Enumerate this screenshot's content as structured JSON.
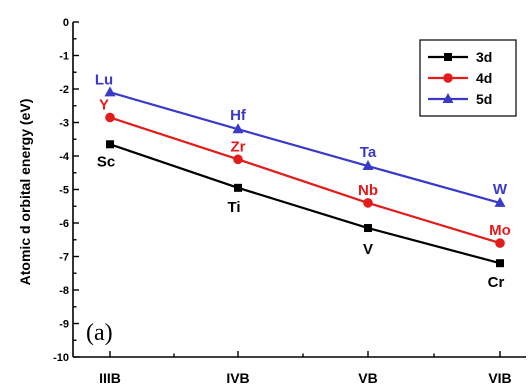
{
  "chart_data": {
    "type": "line",
    "title": "",
    "xlabel": "",
    "ylabel": "Atomic d orbital energy (eV)",
    "panel_label": "(a)",
    "categories": [
      "IIIB",
      "IVB",
      "VB",
      "VIB"
    ],
    "ylim": [
      -10,
      0
    ],
    "yticks": [
      0,
      -1,
      -2,
      -3,
      -4,
      -5,
      -6,
      -7,
      -8,
      -9,
      -10
    ],
    "grid": false,
    "legend_position": "top-right",
    "series": [
      {
        "name": "3d",
        "color": "#000000",
        "marker": "square",
        "values": [
          -3.65,
          -4.95,
          -6.15,
          -7.2
        ],
        "point_labels": [
          "Sc",
          "Ti",
          "V",
          "Cr"
        ]
      },
      {
        "name": "4d",
        "color": "#e21b1b",
        "marker": "circle",
        "values": [
          -2.85,
          -4.1,
          -5.4,
          -6.6
        ],
        "point_labels": [
          "Y",
          "Zr",
          "Nb",
          "Mo"
        ]
      },
      {
        "name": "5d",
        "color": "#3a3ac8",
        "marker": "triangle",
        "values": [
          -2.1,
          -3.2,
          -4.3,
          -5.4
        ],
        "point_labels": [
          "Lu",
          "Hf",
          "Ta",
          "W"
        ]
      }
    ]
  }
}
